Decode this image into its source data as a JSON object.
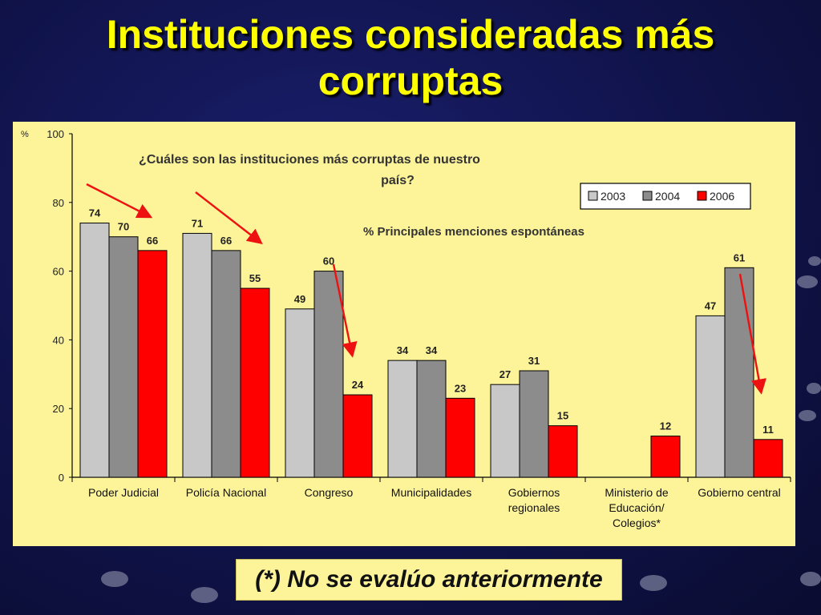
{
  "slide": {
    "title_line1": "Instituciones consideradas más",
    "title_line2": "corruptas",
    "footnote": "(*) No se evalúo anteriormente"
  },
  "colors": {
    "2003": "#c8c8c8",
    "2004": "#8c8c8c",
    "2006": "#ff0000",
    "arrow": "#ee1111",
    "chart_bg": "#fdf49a"
  },
  "chart_data": {
    "type": "bar",
    "title": "¿Cuáles son las instituciones más corruptas de nuestro país?",
    "subtitle": "% Principales menciones espontáneas",
    "ylabel": "%",
    "ylim": [
      0,
      100
    ],
    "yticks": [
      0,
      20,
      40,
      60,
      80,
      100
    ],
    "legend_position": "top-right",
    "categories": [
      [
        "Poder Judicial"
      ],
      [
        "Policía Nacional"
      ],
      [
        "Congreso"
      ],
      [
        "Municipalidades"
      ],
      [
        "Gobiernos",
        "regionales"
      ],
      [
        "Ministerio de",
        "Educación/",
        "Colegios*"
      ],
      [
        "Gobierno central"
      ]
    ],
    "series": [
      {
        "name": "2003",
        "values": [
          74,
          71,
          49,
          34,
          27,
          null,
          47
        ]
      },
      {
        "name": "2004",
        "values": [
          70,
          66,
          60,
          34,
          31,
          null,
          61
        ]
      },
      {
        "name": "2006",
        "values": [
          66,
          55,
          24,
          23,
          15,
          12,
          11
        ]
      }
    ]
  }
}
